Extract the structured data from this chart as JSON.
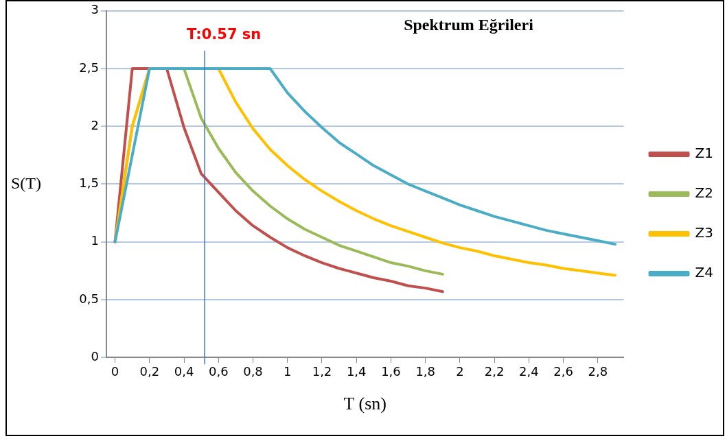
{
  "chart_data": {
    "type": "line",
    "title": "Spektrum Eğrileri",
    "xlabel": "T (sn)",
    "ylabel": "S(T)",
    "x": [
      0,
      0.1,
      0.2,
      0.3,
      0.4,
      0.5,
      0.6,
      0.7,
      0.8,
      0.9,
      1,
      1.1,
      1.2,
      1.3,
      1.4,
      1.5,
      1.6,
      1.7,
      1.8,
      1.9,
      2,
      2.1,
      2.2,
      2.3,
      2.4,
      2.5,
      2.6,
      2.7,
      2.8,
      2.9
    ],
    "series": [
      {
        "name": "Z1",
        "color": "#c0504d",
        "values": [
          1,
          2.5,
          2.5,
          2.5,
          1.99,
          1.59,
          1.43,
          1.27,
          1.14,
          1.04,
          0.95,
          0.88,
          0.82,
          0.77,
          0.73,
          0.69,
          0.66,
          0.62,
          0.6,
          0.57,
          null,
          null,
          null,
          null,
          null,
          null,
          null,
          null,
          null,
          null
        ]
      },
      {
        "name": "Z2",
        "color": "#9bbb59",
        "values": [
          1,
          2,
          2.5,
          2.5,
          2.5,
          2.07,
          1.81,
          1.6,
          1.44,
          1.31,
          1.2,
          1.11,
          1.04,
          0.97,
          0.92,
          0.87,
          0.82,
          0.79,
          0.75,
          0.72,
          null,
          null,
          null,
          null,
          null,
          null,
          null,
          null,
          null,
          null
        ]
      },
      {
        "name": "Z3",
        "color": "#ffc000",
        "values": [
          1,
          2,
          2.5,
          2.5,
          2.5,
          2.5,
          2.5,
          2.21,
          1.98,
          1.8,
          1.66,
          1.54,
          1.44,
          1.35,
          1.27,
          1.2,
          1.14,
          1.09,
          1.04,
          0.99,
          0.95,
          0.92,
          0.88,
          0.85,
          0.82,
          0.8,
          0.77,
          0.75,
          0.73,
          0.71
        ]
      },
      {
        "name": "Z4",
        "color": "#4bacc6",
        "values": [
          1,
          1.75,
          2.5,
          2.5,
          2.5,
          2.5,
          2.5,
          2.5,
          2.5,
          2.5,
          2.29,
          2.13,
          1.99,
          1.86,
          1.76,
          1.66,
          1.58,
          1.5,
          1.44,
          1.38,
          1.32,
          1.27,
          1.22,
          1.18,
          1.14,
          1.1,
          1.07,
          1.04,
          1.01,
          0.98
        ]
      }
    ],
    "xlim": [
      -0.05,
      2.95
    ],
    "xticks": [
      0,
      {
        "value": 0.2,
        "label": "0,2"
      },
      {
        "value": 0.4,
        "label": "0,4"
      },
      {
        "value": 0.6,
        "label": "0,6"
      },
      {
        "value": 0.8,
        "label": "0,8"
      },
      1,
      {
        "value": 1.2,
        "label": "1,2"
      },
      {
        "value": 1.4,
        "label": "1,4"
      },
      {
        "value": 1.6,
        "label": "1,6"
      },
      {
        "value": 1.8,
        "label": "1,8"
      },
      2,
      {
        "value": 2.2,
        "label": "2,2"
      },
      {
        "value": 2.4,
        "label": "2,4"
      },
      {
        "value": 2.6,
        "label": "2,6"
      },
      {
        "value": 2.8,
        "label": "2,8"
      }
    ],
    "ylim": [
      0,
      3
    ],
    "yticks": [
      0,
      {
        "value": 0.5,
        "label": "0,5"
      },
      1,
      {
        "value": 1.5,
        "label": "1,5"
      },
      2,
      {
        "value": 2.5,
        "label": "2,5"
      },
      3
    ],
    "ref_lines": [
      {
        "axis": "x",
        "value": 0.52,
        "color": "#4472c4"
      }
    ],
    "annotations": [
      "T:0.57 sn"
    ],
    "grid": "y",
    "legend": "right",
    "marker": "none",
    "line_style": "solid"
  }
}
